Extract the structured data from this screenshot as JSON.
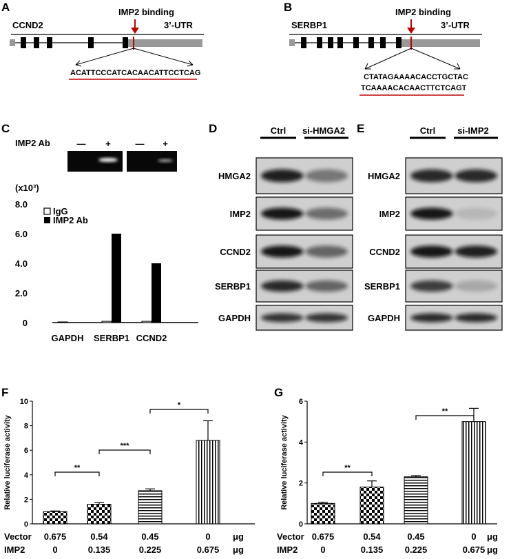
{
  "panels": {
    "A": {
      "letter": "A",
      "gene": "CCND2",
      "utr": "3’-UTR",
      "binding": "IMP2 binding",
      "seq": [
        "ACATTCCCATCACAACATTCCTCAG"
      ]
    },
    "B": {
      "letter": "B",
      "gene": "SERBP1",
      "utr": "3’-UTR",
      "binding": "IMP2 binding",
      "seq": [
        "CTATAGAAAACACCTGCTAC",
        "TCAAAACACAACTTCTCAGT"
      ]
    },
    "C": {
      "letter": "C",
      "ab_label": "IMP2 Ab",
      "lane_signs": [
        "—",
        "+",
        "—",
        "+"
      ]
    },
    "D": {
      "letter": "D",
      "cond": [
        "Ctrl",
        "si-HMGA2"
      ],
      "rows": [
        "HMGA2",
        "IMP2",
        "CCND2",
        "SERBP1",
        "GAPDH"
      ]
    },
    "E": {
      "letter": "E",
      "cond": [
        "Ctrl",
        "si-IMP2"
      ],
      "rows": [
        "HMGA2",
        "IMP2",
        "CCND2",
        "SERBP1",
        "GAPDH"
      ]
    },
    "F": {
      "letter": "F"
    },
    "G": {
      "letter": "G"
    }
  },
  "colors": {
    "accent": "#c00000",
    "gene_body": "#999999",
    "bar": "#000000"
  },
  "chart_data": [
    {
      "id": "C",
      "type": "bar",
      "categories": [
        "GAPDH",
        "SERBP1",
        "CCND2"
      ],
      "series": [
        {
          "name": "IgG",
          "values": [
            0,
            0.04,
            0.04
          ]
        },
        {
          "name": "IMP2 Ab",
          "values": [
            0,
            6.0,
            4.0
          ]
        }
      ],
      "ylim": [
        0,
        8.0
      ],
      "yticks": [
        "0",
        "2.0",
        "4.0",
        "6.0",
        "8.0"
      ],
      "unit": "(x10³)",
      "legend": "top-left"
    },
    {
      "id": "F",
      "type": "bar",
      "categories": [
        "1",
        "2",
        "3",
        "4"
      ],
      "values": [
        1.0,
        1.6,
        2.7,
        6.8
      ],
      "errors": [
        0.05,
        0.12,
        0.15,
        1.6
      ],
      "ylabel": "Relative luciferase activity",
      "ylim": [
        0,
        10
      ],
      "yticks": [
        "0",
        "2",
        "4",
        "6",
        "8",
        "10"
      ],
      "significance": [
        {
          "from": 0,
          "to": 1,
          "label": "**"
        },
        {
          "from": 1,
          "to": 2,
          "label": "***"
        },
        {
          "from": 2,
          "to": 3,
          "label": "*"
        }
      ],
      "rows": [
        {
          "name": "Vector",
          "values": [
            "0.675",
            "0.54",
            "0.45",
            "0"
          ],
          "unit": "μg"
        },
        {
          "name": "IMP2",
          "values": [
            "0",
            "0.135",
            "0.225",
            "0.675"
          ],
          "unit": "μg"
        }
      ]
    },
    {
      "id": "G",
      "type": "bar",
      "categories": [
        "1",
        "2",
        "3",
        "4"
      ],
      "values": [
        1.0,
        1.8,
        2.3,
        5.0
      ],
      "errors": [
        0.06,
        0.3,
        0.06,
        0.65
      ],
      "ylabel": "Relative luciferase activity",
      "ylim": [
        0,
        6
      ],
      "yticks": [
        "0",
        "2",
        "4",
        "6"
      ],
      "significance": [
        {
          "from": 0,
          "to": 1,
          "label": "**"
        },
        {
          "from": 2,
          "to": 3,
          "label": "**"
        }
      ],
      "rows": [
        {
          "name": "Vector",
          "values": [
            "0.675",
            "0.54",
            "0.45",
            "0"
          ],
          "unit": "μg"
        },
        {
          "name": "IMP2",
          "values": [
            "0",
            "0.135",
            "0.225",
            "0.675"
          ],
          "unit": "μg"
        }
      ]
    }
  ]
}
